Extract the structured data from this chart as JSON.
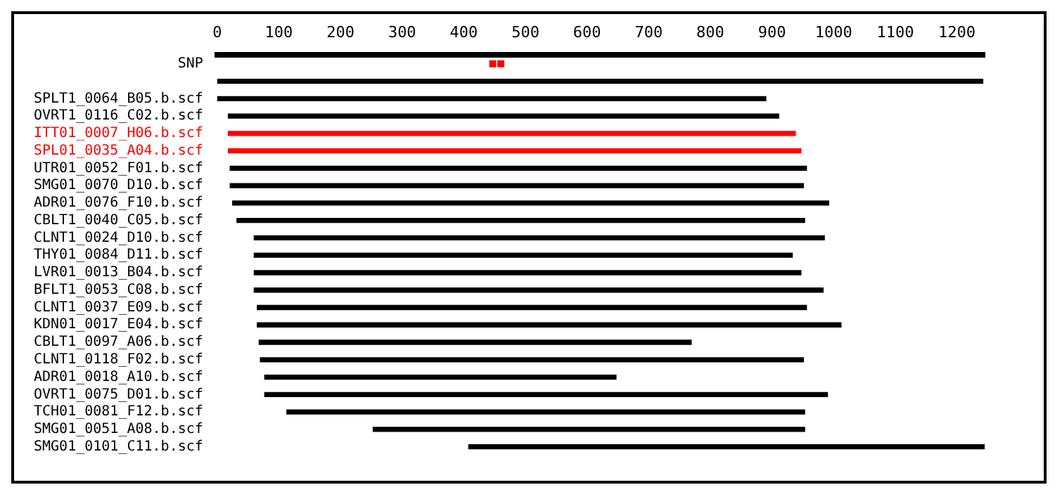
{
  "chart_data": {
    "type": "bar",
    "orientation": "horizontal",
    "categories": [
      "SNP",
      null,
      "SPLT1_0064_B05.b.scf",
      "OVRT1_0116_C02.b.scf",
      "ITT01_0007_H06.b.scf",
      "SPL01_0035_A04.b.scf",
      "UTR01_0052_F01.b.scf",
      "SMG01_0070_D10.b.scf",
      "ADR01_0076_F10.b.scf",
      "CBLT1_0040_C05.b.scf",
      "CLNT1_0024_D10.b.scf",
      "THY01_0084_D11.b.scf",
      "LVR01_0013_B04.b.scf",
      "BFLT1_0053_C08.b.scf",
      "CLNT1_0037_E09.b.scf",
      "KDN01_0017_E04.b.scf",
      "CBLT1_0097_A06.b.scf",
      "CLNT1_0118_F02.b.scf",
      "ADR01_0018_A10.b.scf",
      "OVRT1_0075_D01.b.scf",
      "TCH01_0081_F12.b.scf",
      "SMG01_0051_A08.b.scf",
      "SMG01_0101_C11.b.scf"
    ],
    "series": [
      {
        "base": [
          null,
          0,
          0,
          18,
          18,
          18,
          21,
          21,
          25,
          32,
          60,
          60,
          60,
          60,
          65,
          65,
          68,
          70,
          77,
          77,
          113,
          253,
          408
        ],
        "values": [
          null,
          1242,
          890,
          893,
          920,
          929,
          935,
          930,
          967,
          921,
          925,
          873,
          887,
          923,
          891,
          947,
          701,
          881,
          570,
          913,
          840,
          700,
          837
        ],
        "colors": [
          "#000000",
          "#000000",
          "#000000",
          "#000000",
          "#ff0000",
          "#ff0000",
          "#000000",
          "#000000",
          "#000000",
          "#000000",
          "#000000",
          "#000000",
          "#000000",
          "#000000",
          "#000000",
          "#000000",
          "#000000",
          "#000000",
          "#000000",
          "#000000",
          "#000000",
          "#000000",
          "#000000"
        ]
      },
      {
        "type": "scatter",
        "x": [
          "SNP",
          "SNP"
        ],
        "values": [
          447,
          460
        ],
        "color": "#ff0000",
        "marker": "square"
      }
    ],
    "xlim": [
      0,
      1245
    ],
    "xticks": [
      0,
      100,
      200,
      300,
      400,
      500,
      600,
      700,
      800,
      900,
      1000,
      1100,
      1200
    ]
  }
}
